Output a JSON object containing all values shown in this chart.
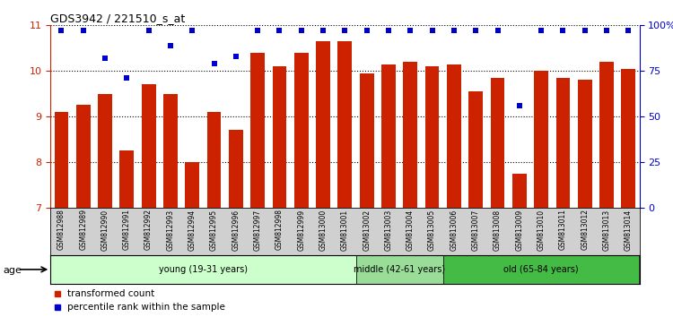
{
  "title": "GDS3942 / 221510_s_at",
  "samples": [
    "GSM812988",
    "GSM812989",
    "GSM812990",
    "GSM812991",
    "GSM812992",
    "GSM812993",
    "GSM812994",
    "GSM812995",
    "GSM812996",
    "GSM812997",
    "GSM812998",
    "GSM812999",
    "GSM813000",
    "GSM813001",
    "GSM813002",
    "GSM813003",
    "GSM813004",
    "GSM813005",
    "GSM813006",
    "GSM813007",
    "GSM813008",
    "GSM813009",
    "GSM813010",
    "GSM813011",
    "GSM813012",
    "GSM813013",
    "GSM813014"
  ],
  "bar_values": [
    9.1,
    9.25,
    9.5,
    8.25,
    9.7,
    9.5,
    8.0,
    9.1,
    8.7,
    10.4,
    10.1,
    10.4,
    10.65,
    10.65,
    9.95,
    10.15,
    10.2,
    10.1,
    10.15,
    9.55,
    9.85,
    7.75,
    10.0,
    9.85,
    9.8,
    10.2,
    10.05
  ],
  "percentile_values": [
    97,
    97,
    82,
    71,
    97,
    89,
    97,
    79,
    83,
    97,
    97,
    97,
    97,
    97,
    97,
    97,
    97,
    97,
    97,
    97,
    97,
    56,
    97,
    97,
    97,
    97,
    97
  ],
  "bar_color": "#cc2200",
  "percentile_color": "#0000cc",
  "ylim_left": [
    7,
    11
  ],
  "ylim_right": [
    0,
    100
  ],
  "yticks_left": [
    7,
    8,
    9,
    10,
    11
  ],
  "yticks_right": [
    0,
    25,
    50,
    75,
    100
  ],
  "ytick_labels_right": [
    "0",
    "25",
    "50",
    "75",
    "100%"
  ],
  "groups": [
    {
      "label": "young (19-31 years)",
      "start": 0,
      "end": 14,
      "color": "#ccffcc"
    },
    {
      "label": "middle (42-61 years)",
      "start": 14,
      "end": 18,
      "color": "#99dd99"
    },
    {
      "label": "old (65-84 years)",
      "start": 18,
      "end": 27,
      "color": "#44bb44"
    }
  ],
  "age_label": "age",
  "legend_bar_label": "transformed count",
  "legend_pct_label": "percentile rank within the sample",
  "background_color": "#d0d0d0",
  "grid_color": "#000000",
  "title_fontsize": 9,
  "tick_fontsize": 8
}
